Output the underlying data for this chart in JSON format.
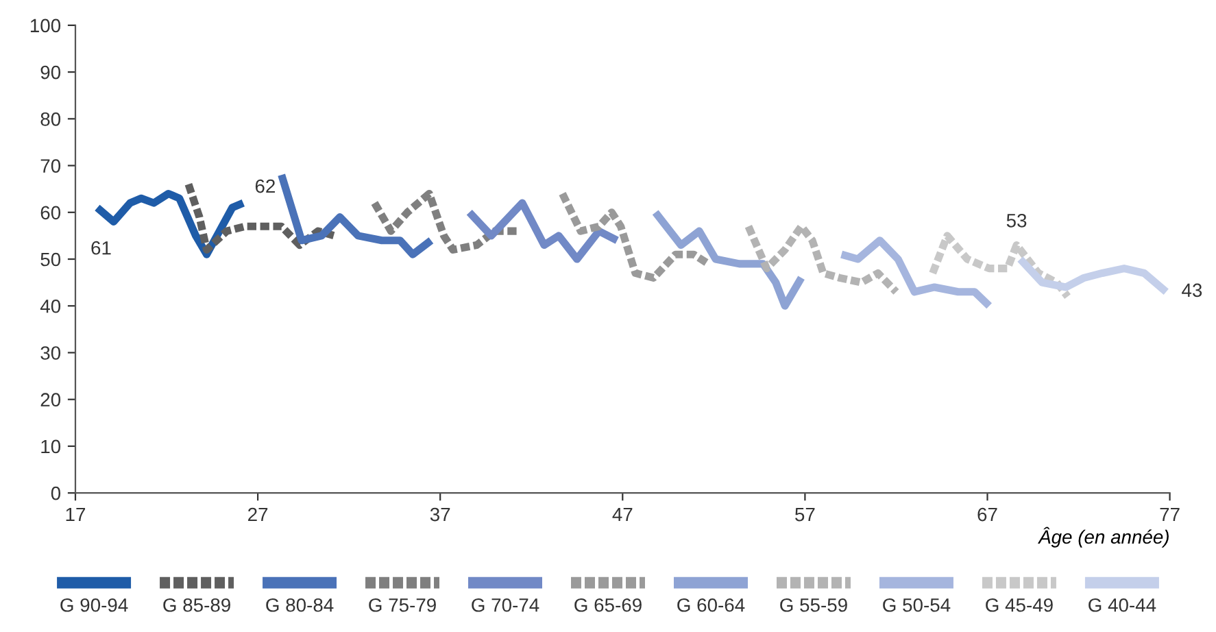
{
  "chart_data": {
    "type": "line",
    "xlabel": "Âge (en année)",
    "xlim": [
      17,
      77
    ],
    "xticks": [
      17,
      27,
      37,
      47,
      57,
      67,
      77
    ],
    "ylim": [
      0,
      100
    ],
    "yticks": [
      0,
      10,
      20,
      30,
      40,
      50,
      60,
      70,
      80,
      90,
      100
    ],
    "grid": false,
    "legend": "bottom",
    "marker": "none",
    "series": [
      {
        "name": "G 90-94",
        "color": "#1f5ca8",
        "line_style": "solid",
        "x": [
          18.2,
          19.1,
          20.0,
          20.6,
          21.3,
          22.1,
          22.7,
          23.6,
          24.2,
          24.9,
          25.6,
          26.2
        ],
        "values": [
          61,
          58,
          62,
          63,
          62,
          64,
          63,
          55,
          51,
          56,
          61,
          62
        ]
      },
      {
        "name": "G 85-89",
        "color": "#5f5f5f",
        "line_style": "dashed",
        "x": [
          23.2,
          23.8,
          24.2,
          25.3,
          26.3,
          27.3,
          28.3,
          29.3,
          30.3,
          31.2
        ],
        "values": [
          66,
          59,
          52,
          56,
          57,
          57,
          57,
          53,
          56,
          55
        ]
      },
      {
        "name": "G 80-84",
        "color": "#4a72b8",
        "line_style": "solid",
        "x": [
          28.3,
          29.4,
          30.5,
          31.5,
          32.5,
          33.8,
          34.8,
          35.5,
          36.5
        ],
        "values": [
          68,
          54,
          55,
          59,
          55,
          54,
          54,
          51,
          54
        ]
      },
      {
        "name": "G 75-79",
        "color": "#7f7f7f",
        "line_style": "dashed",
        "x": [
          33.4,
          34.3,
          35.2,
          36.4,
          37.2,
          37.7,
          39.0,
          40.0,
          41.3
        ],
        "values": [
          62,
          56,
          60,
          64,
          55,
          52,
          53,
          56,
          56
        ]
      },
      {
        "name": "G 70-74",
        "color": "#7189c6",
        "line_style": "solid",
        "x": [
          38.6,
          39.8,
          41.5,
          42.7,
          43.5,
          44.5,
          45.7,
          46.7
        ],
        "values": [
          60,
          55,
          62,
          53,
          55,
          50,
          56,
          54
        ]
      },
      {
        "name": "G 65-69",
        "color": "#9a9a9a",
        "line_style": "dashed",
        "x": [
          43.7,
          44.7,
          45.7,
          46.4,
          46.9,
          47.7,
          48.7,
          49.9,
          50.9,
          51.7
        ],
        "values": [
          64,
          56,
          57,
          60,
          57,
          47,
          46,
          51,
          51,
          49
        ]
      },
      {
        "name": "G 60-64",
        "color": "#8ea3d4",
        "line_style": "solid",
        "x": [
          48.8,
          50.2,
          51.2,
          52.1,
          53.4,
          54.7,
          55.4,
          55.9,
          56.8
        ],
        "values": [
          60,
          53,
          56,
          50,
          49,
          49,
          45,
          40,
          46
        ]
      },
      {
        "name": "G 55-59",
        "color": "#b3b3b3",
        "line_style": "dashed",
        "x": [
          53.9,
          54.9,
          55.9,
          56.8,
          57.4,
          58.0,
          58.9,
          60.1,
          61.0,
          62.0
        ],
        "values": [
          57,
          48,
          52,
          57,
          54,
          47,
          46,
          45,
          47,
          43
        ]
      },
      {
        "name": "G 50-54",
        "color": "#a5b5de",
        "line_style": "solid",
        "x": [
          59.0,
          59.9,
          61.1,
          62.1,
          63.0,
          64.1,
          65.4,
          66.3,
          67.1
        ],
        "values": [
          51,
          50,
          54,
          50,
          43,
          44,
          43,
          43,
          40
        ]
      },
      {
        "name": "G 45-49",
        "color": "#c8c8c8",
        "line_style": "dashed",
        "x": [
          64.0,
          64.8,
          65.9,
          67.1,
          68.1,
          68.6,
          69.8,
          70.8,
          71.4
        ],
        "values": [
          47,
          55,
          50,
          48,
          48,
          53,
          47,
          45,
          42
        ]
      },
      {
        "name": "G 40-44",
        "color": "#c4cfea",
        "line_style": "solid",
        "x": [
          68.8,
          70.0,
          71.3,
          72.3,
          73.3,
          74.5,
          75.6,
          76.8
        ],
        "values": [
          50,
          45,
          44,
          46,
          47,
          48,
          47,
          43
        ]
      }
    ],
    "annotations": [
      {
        "text": "61",
        "x": 18.2,
        "y": 61
      },
      {
        "text": "62",
        "x": 26.2,
        "y": 62
      },
      {
        "text": "53",
        "x": 68.6,
        "y": 53
      },
      {
        "text": "43",
        "x": 76.8,
        "y": 43
      }
    ]
  }
}
